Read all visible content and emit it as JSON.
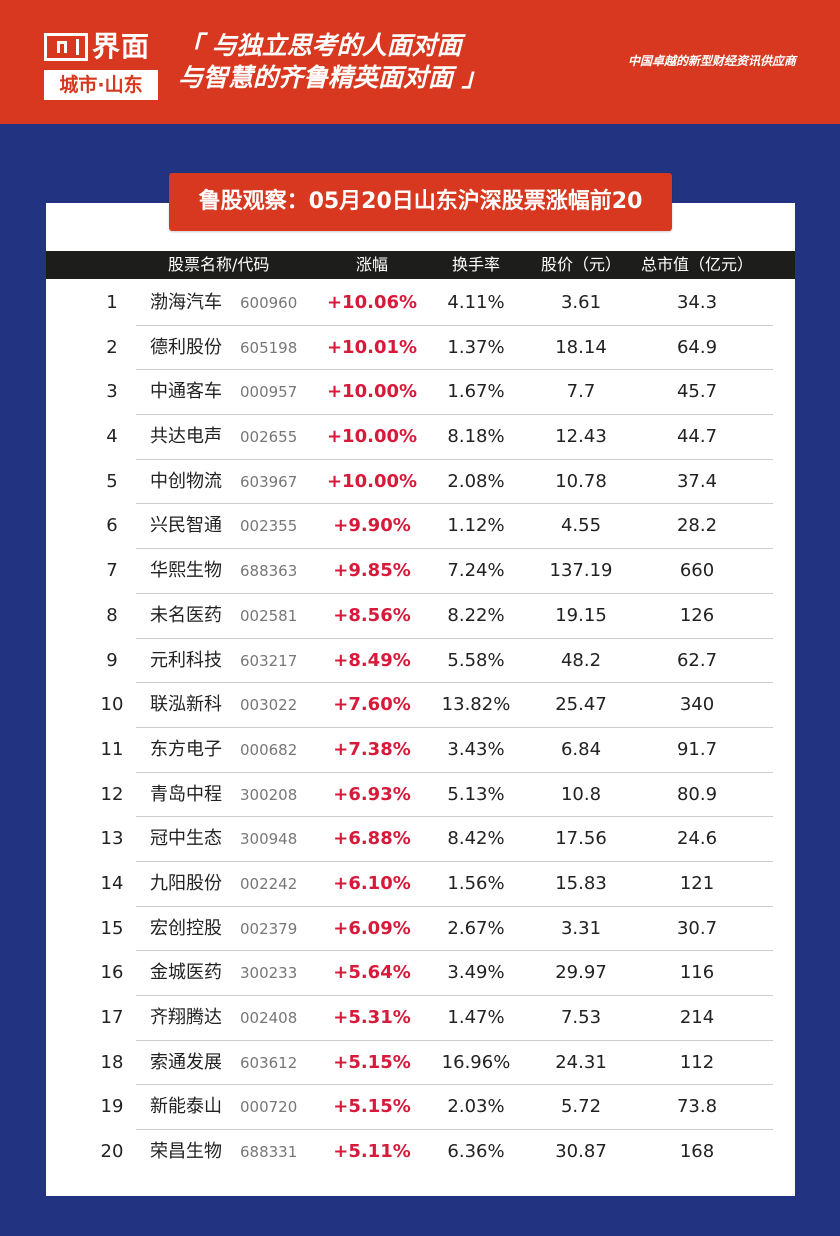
{
  "header": {
    "logo_word": "界面",
    "logo_city": "城市·山东",
    "slogan_line1": "「 与独立思考的人面对面",
    "slogan_line2": "与智慧的齐鲁精英面对面 」",
    "tagline": "中国卓越的新型财经资讯供应商"
  },
  "title": "鲁股观察：05月20日山东沪深股票涨幅前20",
  "colors": {
    "brand_red": "#d7381f",
    "navy": "#223381",
    "rise_red": "#d7193a",
    "header_black": "#1d1d1b"
  },
  "table": {
    "headers": {
      "name_code": "股票名称/代码",
      "change": "涨幅",
      "turnover": "换手率",
      "price": "股价（元）",
      "market_cap": "总市值（亿元）"
    },
    "rows": [
      {
        "rank": "1",
        "name": "渤海汽车",
        "code": "600960",
        "change": "+10.06%",
        "turnover": "4.11%",
        "price": "3.61",
        "cap": "34.3"
      },
      {
        "rank": "2",
        "name": "德利股份",
        "code": "605198",
        "change": "+10.01%",
        "turnover": "1.37%",
        "price": "18.14",
        "cap": "64.9"
      },
      {
        "rank": "3",
        "name": "中通客车",
        "code": "000957",
        "change": "+10.00%",
        "turnover": "1.67%",
        "price": "7.7",
        "cap": "45.7"
      },
      {
        "rank": "4",
        "name": "共达电声",
        "code": "002655",
        "change": "+10.00%",
        "turnover": "8.18%",
        "price": "12.43",
        "cap": "44.7"
      },
      {
        "rank": "5",
        "name": "中创物流",
        "code": "603967",
        "change": "+10.00%",
        "turnover": "2.08%",
        "price": "10.78",
        "cap": "37.4"
      },
      {
        "rank": "6",
        "name": "兴民智通",
        "code": "002355",
        "change": "+9.90%",
        "turnover": "1.12%",
        "price": "4.55",
        "cap": "28.2"
      },
      {
        "rank": "7",
        "name": "华熙生物",
        "code": "688363",
        "change": "+9.85%",
        "turnover": "7.24%",
        "price": "137.19",
        "cap": "660"
      },
      {
        "rank": "8",
        "name": "未名医药",
        "code": "002581",
        "change": "+8.56%",
        "turnover": "8.22%",
        "price": "19.15",
        "cap": "126"
      },
      {
        "rank": "9",
        "name": "元利科技",
        "code": "603217",
        "change": "+8.49%",
        "turnover": "5.58%",
        "price": "48.2",
        "cap": "62.7"
      },
      {
        "rank": "10",
        "name": "联泓新科",
        "code": "003022",
        "change": "+7.60%",
        "turnover": "13.82%",
        "price": "25.47",
        "cap": "340"
      },
      {
        "rank": "11",
        "name": "东方电子",
        "code": "000682",
        "change": "+7.38%",
        "turnover": "3.43%",
        "price": "6.84",
        "cap": "91.7"
      },
      {
        "rank": "12",
        "name": "青岛中程",
        "code": "300208",
        "change": "+6.93%",
        "turnover": "5.13%",
        "price": "10.8",
        "cap": "80.9"
      },
      {
        "rank": "13",
        "name": "冠中生态",
        "code": "300948",
        "change": "+6.88%",
        "turnover": "8.42%",
        "price": "17.56",
        "cap": "24.6"
      },
      {
        "rank": "14",
        "name": "九阳股份",
        "code": "002242",
        "change": "+6.10%",
        "turnover": "1.56%",
        "price": "15.83",
        "cap": "121"
      },
      {
        "rank": "15",
        "name": "宏创控股",
        "code": "002379",
        "change": "+6.09%",
        "turnover": "2.67%",
        "price": "3.31",
        "cap": "30.7"
      },
      {
        "rank": "16",
        "name": "金城医药",
        "code": "300233",
        "change": "+5.64%",
        "turnover": "3.49%",
        "price": "29.97",
        "cap": "116"
      },
      {
        "rank": "17",
        "name": "齐翔腾达",
        "code": "002408",
        "change": "+5.31%",
        "turnover": "1.47%",
        "price": "7.53",
        "cap": "214"
      },
      {
        "rank": "18",
        "name": "索通发展",
        "code": "603612",
        "change": "+5.15%",
        "turnover": "16.96%",
        "price": "24.31",
        "cap": "112"
      },
      {
        "rank": "19",
        "name": "新能泰山",
        "code": "000720",
        "change": "+5.15%",
        "turnover": "2.03%",
        "price": "5.72",
        "cap": "73.8"
      },
      {
        "rank": "20",
        "name": "荣昌生物",
        "code": "688331",
        "change": "+5.11%",
        "turnover": "6.36%",
        "price": "30.87",
        "cap": "168"
      }
    ]
  }
}
